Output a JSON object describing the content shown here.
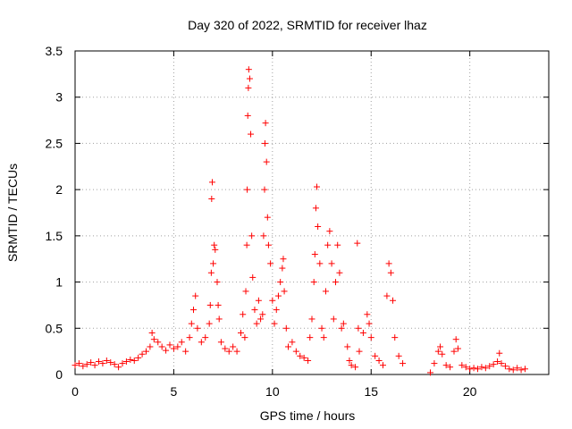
{
  "chart_data": {
    "type": "scatter",
    "title": "Day 320 of 2022, SRMTID for receiver lhaz",
    "xlabel": "GPS time / hours",
    "ylabel": "SRMTID / TECUs",
    "xlim": [
      0,
      24
    ],
    "ylim": [
      0,
      3.5
    ],
    "xticks": [
      0,
      5,
      10,
      15,
      20
    ],
    "xtick_labels": [
      "0",
      "5",
      "10",
      "15",
      "20"
    ],
    "yticks": [
      0,
      0.5,
      1,
      1.5,
      2,
      2.5,
      3,
      3.5
    ],
    "ytick_labels": [
      "0",
      "0.5",
      "1",
      "1.5",
      "2",
      "2.5",
      "3",
      "3.5"
    ],
    "grid": true,
    "marker": "+",
    "marker_color": "#ff0000",
    "series": [
      {
        "name": "SRMTID",
        "points": [
          [
            0.0,
            0.1
          ],
          [
            0.2,
            0.12
          ],
          [
            0.4,
            0.09
          ],
          [
            0.6,
            0.11
          ],
          [
            0.8,
            0.13
          ],
          [
            1.0,
            0.1
          ],
          [
            1.2,
            0.14
          ],
          [
            1.4,
            0.12
          ],
          [
            1.6,
            0.15
          ],
          [
            1.8,
            0.13
          ],
          [
            2.0,
            0.11
          ],
          [
            2.2,
            0.08
          ],
          [
            2.4,
            0.12
          ],
          [
            2.6,
            0.14
          ],
          [
            2.8,
            0.16
          ],
          [
            3.0,
            0.15
          ],
          [
            3.2,
            0.18
          ],
          [
            3.4,
            0.22
          ],
          [
            3.6,
            0.25
          ],
          [
            3.8,
            0.3
          ],
          [
            3.9,
            0.45
          ],
          [
            4.0,
            0.38
          ],
          [
            4.2,
            0.35
          ],
          [
            4.4,
            0.3
          ],
          [
            4.6,
            0.26
          ],
          [
            4.8,
            0.32
          ],
          [
            5.0,
            0.28
          ],
          [
            5.2,
            0.3
          ],
          [
            5.4,
            0.35
          ],
          [
            5.6,
            0.25
          ],
          [
            5.8,
            0.4
          ],
          [
            5.9,
            0.55
          ],
          [
            6.0,
            0.7
          ],
          [
            6.1,
            0.85
          ],
          [
            6.2,
            0.5
          ],
          [
            6.4,
            0.35
          ],
          [
            6.6,
            0.4
          ],
          [
            6.8,
            0.55
          ],
          [
            6.85,
            0.75
          ],
          [
            6.9,
            1.1
          ],
          [
            6.92,
            1.9
          ],
          [
            6.95,
            2.08
          ],
          [
            7.0,
            1.2
          ],
          [
            7.05,
            1.4
          ],
          [
            7.1,
            1.35
          ],
          [
            7.2,
            1.0
          ],
          [
            7.25,
            0.75
          ],
          [
            7.3,
            0.6
          ],
          [
            7.4,
            0.35
          ],
          [
            7.6,
            0.28
          ],
          [
            7.8,
            0.25
          ],
          [
            8.0,
            0.3
          ],
          [
            8.2,
            0.25
          ],
          [
            8.4,
            0.45
          ],
          [
            8.5,
            0.65
          ],
          [
            8.6,
            0.4
          ],
          [
            8.65,
            0.9
          ],
          [
            8.7,
            1.4
          ],
          [
            8.72,
            2.0
          ],
          [
            8.75,
            2.8
          ],
          [
            8.78,
            3.1
          ],
          [
            8.8,
            3.3
          ],
          [
            8.85,
            3.2
          ],
          [
            8.9,
            2.6
          ],
          [
            8.95,
            1.5
          ],
          [
            9.0,
            1.05
          ],
          [
            9.1,
            0.7
          ],
          [
            9.2,
            0.55
          ],
          [
            9.3,
            0.8
          ],
          [
            9.4,
            0.6
          ],
          [
            9.5,
            0.65
          ],
          [
            9.55,
            1.5
          ],
          [
            9.6,
            2.0
          ],
          [
            9.62,
            2.5
          ],
          [
            9.65,
            2.72
          ],
          [
            9.7,
            2.3
          ],
          [
            9.75,
            1.7
          ],
          [
            9.8,
            1.4
          ],
          [
            9.9,
            1.2
          ],
          [
            10.0,
            0.8
          ],
          [
            10.1,
            0.55
          ],
          [
            10.2,
            0.7
          ],
          [
            10.3,
            0.85
          ],
          [
            10.4,
            1.0
          ],
          [
            10.5,
            1.15
          ],
          [
            10.55,
            1.25
          ],
          [
            10.6,
            0.9
          ],
          [
            10.7,
            0.5
          ],
          [
            10.8,
            0.3
          ],
          [
            11.0,
            0.35
          ],
          [
            11.2,
            0.25
          ],
          [
            11.4,
            0.2
          ],
          [
            11.6,
            0.18
          ],
          [
            11.8,
            0.15
          ],
          [
            11.9,
            0.4
          ],
          [
            12.0,
            0.6
          ],
          [
            12.1,
            1.0
          ],
          [
            12.15,
            1.3
          ],
          [
            12.2,
            1.8
          ],
          [
            12.25,
            2.03
          ],
          [
            12.3,
            1.6
          ],
          [
            12.4,
            1.2
          ],
          [
            12.5,
            0.5
          ],
          [
            12.6,
            0.4
          ],
          [
            12.7,
            0.9
          ],
          [
            12.8,
            1.4
          ],
          [
            12.9,
            1.55
          ],
          [
            13.0,
            1.2
          ],
          [
            13.1,
            0.6
          ],
          [
            13.2,
            1.0
          ],
          [
            13.3,
            1.4
          ],
          [
            13.4,
            1.1
          ],
          [
            13.5,
            0.5
          ],
          [
            13.6,
            0.55
          ],
          [
            13.8,
            0.3
          ],
          [
            13.9,
            0.15
          ],
          [
            14.0,
            0.1
          ],
          [
            14.2,
            0.08
          ],
          [
            14.3,
            1.42
          ],
          [
            14.35,
            0.5
          ],
          [
            14.4,
            0.25
          ],
          [
            14.6,
            0.45
          ],
          [
            14.8,
            0.65
          ],
          [
            14.9,
            0.55
          ],
          [
            15.0,
            0.4
          ],
          [
            15.2,
            0.2
          ],
          [
            15.4,
            0.15
          ],
          [
            15.6,
            0.1
          ],
          [
            15.8,
            0.85
          ],
          [
            15.9,
            1.2
          ],
          [
            16.0,
            1.1
          ],
          [
            16.1,
            0.8
          ],
          [
            16.2,
            0.4
          ],
          [
            16.4,
            0.2
          ],
          [
            16.6,
            0.12
          ],
          [
            18.0,
            0.02
          ],
          [
            18.2,
            0.12
          ],
          [
            18.4,
            0.25
          ],
          [
            18.5,
            0.3
          ],
          [
            18.6,
            0.22
          ],
          [
            18.8,
            0.1
          ],
          [
            19.0,
            0.08
          ],
          [
            19.2,
            0.25
          ],
          [
            19.3,
            0.38
          ],
          [
            19.4,
            0.28
          ],
          [
            19.6,
            0.1
          ],
          [
            19.8,
            0.08
          ],
          [
            20.0,
            0.06
          ],
          [
            20.2,
            0.07
          ],
          [
            20.4,
            0.06
          ],
          [
            20.6,
            0.08
          ],
          [
            20.8,
            0.07
          ],
          [
            21.0,
            0.09
          ],
          [
            21.2,
            0.11
          ],
          [
            21.4,
            0.14
          ],
          [
            21.5,
            0.23
          ],
          [
            21.6,
            0.12
          ],
          [
            21.8,
            0.09
          ],
          [
            22.0,
            0.06
          ],
          [
            22.2,
            0.05
          ],
          [
            22.4,
            0.07
          ],
          [
            22.6,
            0.05
          ],
          [
            22.8,
            0.06
          ]
        ]
      }
    ]
  }
}
